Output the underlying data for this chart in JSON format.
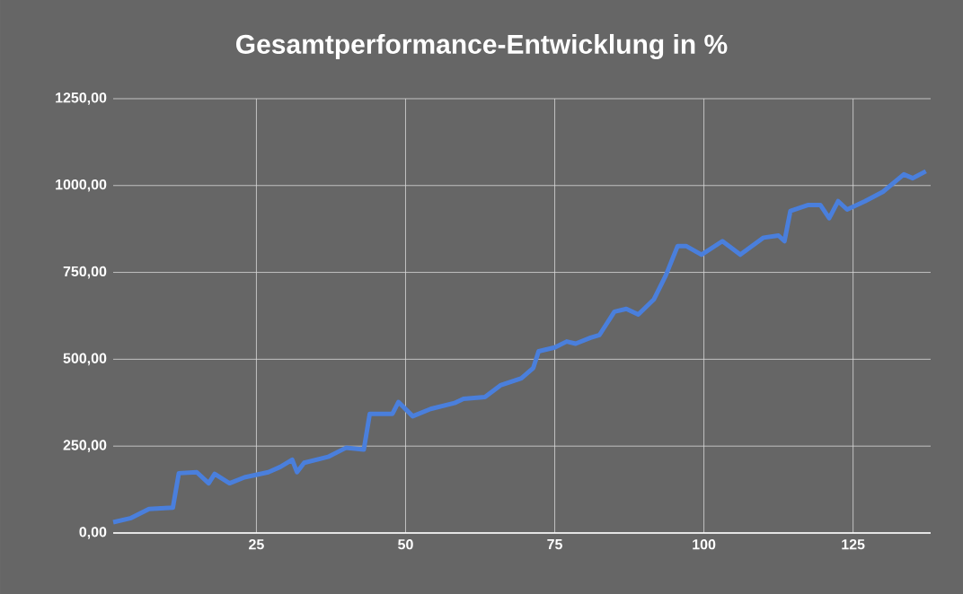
{
  "chart_data": {
    "type": "line",
    "title": "Gesamtperformance-Entwicklung in %",
    "x": [
      1,
      4,
      7,
      11,
      12,
      15,
      17,
      18,
      20.5,
      23,
      27,
      29,
      31,
      31.8,
      33,
      37,
      40,
      43,
      44,
      47.8,
      48.8,
      51.2,
      54.2,
      58.2,
      59.7,
      63.3,
      65.9,
      69.4,
      71.4,
      72.3,
      75,
      77,
      78.5,
      81,
      82.5,
      85,
      87,
      89,
      91.6,
      93.6,
      95.6,
      97,
      99.6,
      103.1,
      106.1,
      110,
      112.5,
      113.5,
      114.5,
      117.5,
      119.5,
      121,
      122.5,
      124,
      127,
      130,
      133.5,
      135,
      137.2
    ],
    "series": [
      {
        "color": "#4a7fdc",
        "values": [
          31,
          43,
          69,
          73,
          172,
          175,
          143,
          170,
          143,
          160,
          175,
          190,
          211,
          175,
          202,
          219,
          245,
          240,
          343,
          343,
          377,
          336,
          357,
          374,
          386,
          391,
          425,
          445,
          475,
          523,
          534,
          551,
          545,
          562,
          570,
          637,
          645,
          629,
          672,
          741,
          826,
          826,
          801,
          840,
          801,
          850,
          856,
          840,
          927,
          944,
          944,
          906,
          955,
          931,
          955,
          982,
          1032,
          1021,
          1041
        ]
      }
    ],
    "xlim": [
      1,
      138
    ],
    "xticks": [
      25,
      50,
      75,
      100,
      125
    ],
    "ylim": [
      0,
      1250
    ],
    "yticks": [
      {
        "value": 0,
        "label": "0,00"
      },
      {
        "value": 250,
        "label": "250,00"
      },
      {
        "value": 500,
        "label": "500,00"
      },
      {
        "value": 750,
        "label": "750,00"
      },
      {
        "value": 1000,
        "label": "1000,00"
      },
      {
        "value": 1250,
        "label": "1250,00"
      }
    ],
    "grid": true,
    "line_style": "solid",
    "marker": "none"
  }
}
